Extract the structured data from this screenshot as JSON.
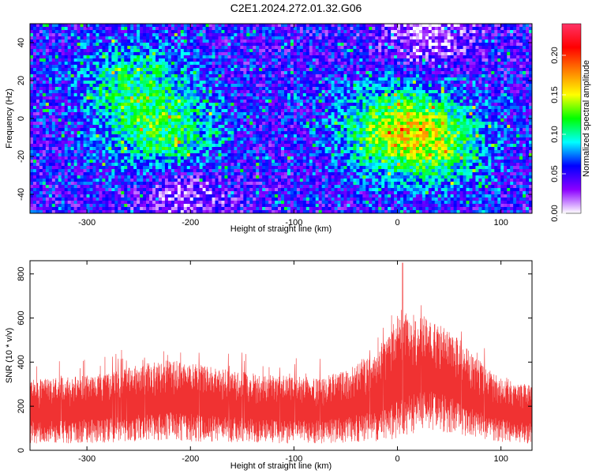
{
  "title": "C2E1.2024.272.01.32.G06",
  "chart_data": [
    {
      "type": "heatmap",
      "xlabel": "Height of straight line (km)",
      "ylabel": "Frequency (Hz)",
      "xlim": [
        -355,
        130
      ],
      "ylim": [
        -50,
        50
      ],
      "x_ticks": [
        -300,
        -200,
        -100,
        0,
        100
      ],
      "y_ticks": [
        -40,
        -20,
        0,
        20,
        40
      ],
      "colorbar": {
        "label": "Normalized spectral amplitude",
        "range": [
          0,
          0.24
        ],
        "ticks": [
          0.0,
          0.05,
          0.1,
          0.15,
          0.2
        ],
        "tick_labels": [
          "0.00",
          "0.05",
          "0.10",
          "0.15",
          "0.20"
        ],
        "colormap": [
          "#ffffff",
          "#8b00ff",
          "#0000ff",
          "#00ffff",
          "#00ff00",
          "#ffff00",
          "#ff8000",
          "#ff0000",
          "#ff3366"
        ]
      },
      "hotspots": [
        {
          "x": -225,
          "y": -10,
          "amp": 0.1
        },
        {
          "x": -255,
          "y": 20,
          "amp": 0.09
        },
        {
          "x": 0,
          "y": -5,
          "amp": 0.12
        },
        {
          "x": 40,
          "y": -15,
          "amp": 0.09
        }
      ],
      "faint_regions": [
        {
          "x": -210,
          "y": -40
        },
        {
          "x": 30,
          "y": 45
        }
      ]
    },
    {
      "type": "line",
      "xlabel": "Height of straight line (km)",
      "ylabel": "SNR (10 * v/v)",
      "xlim": [
        -355,
        130
      ],
      "ylim": [
        0,
        860
      ],
      "x_ticks": [
        -300,
        -200,
        -100,
        0,
        100
      ],
      "y_ticks": [
        0,
        200,
        400,
        600,
        800
      ],
      "series_color": "#f03232",
      "envelope": {
        "x": [
          -355,
          -320,
          -280,
          -250,
          -220,
          -200,
          -170,
          -140,
          -110,
          -80,
          -50,
          -25,
          -10,
          0,
          10,
          30,
          50,
          70,
          90,
          110,
          130
        ],
        "upper": [
          320,
          330,
          350,
          390,
          410,
          400,
          370,
          350,
          340,
          330,
          360,
          430,
          520,
          650,
          620,
          600,
          560,
          450,
          360,
          320,
          300
        ],
        "lower": [
          30,
          30,
          35,
          40,
          45,
          40,
          35,
          35,
          30,
          30,
          35,
          40,
          45,
          30,
          60,
          90,
          80,
          55,
          40,
          35,
          30
        ]
      },
      "peak": {
        "x": 5,
        "y": 850
      }
    }
  ]
}
